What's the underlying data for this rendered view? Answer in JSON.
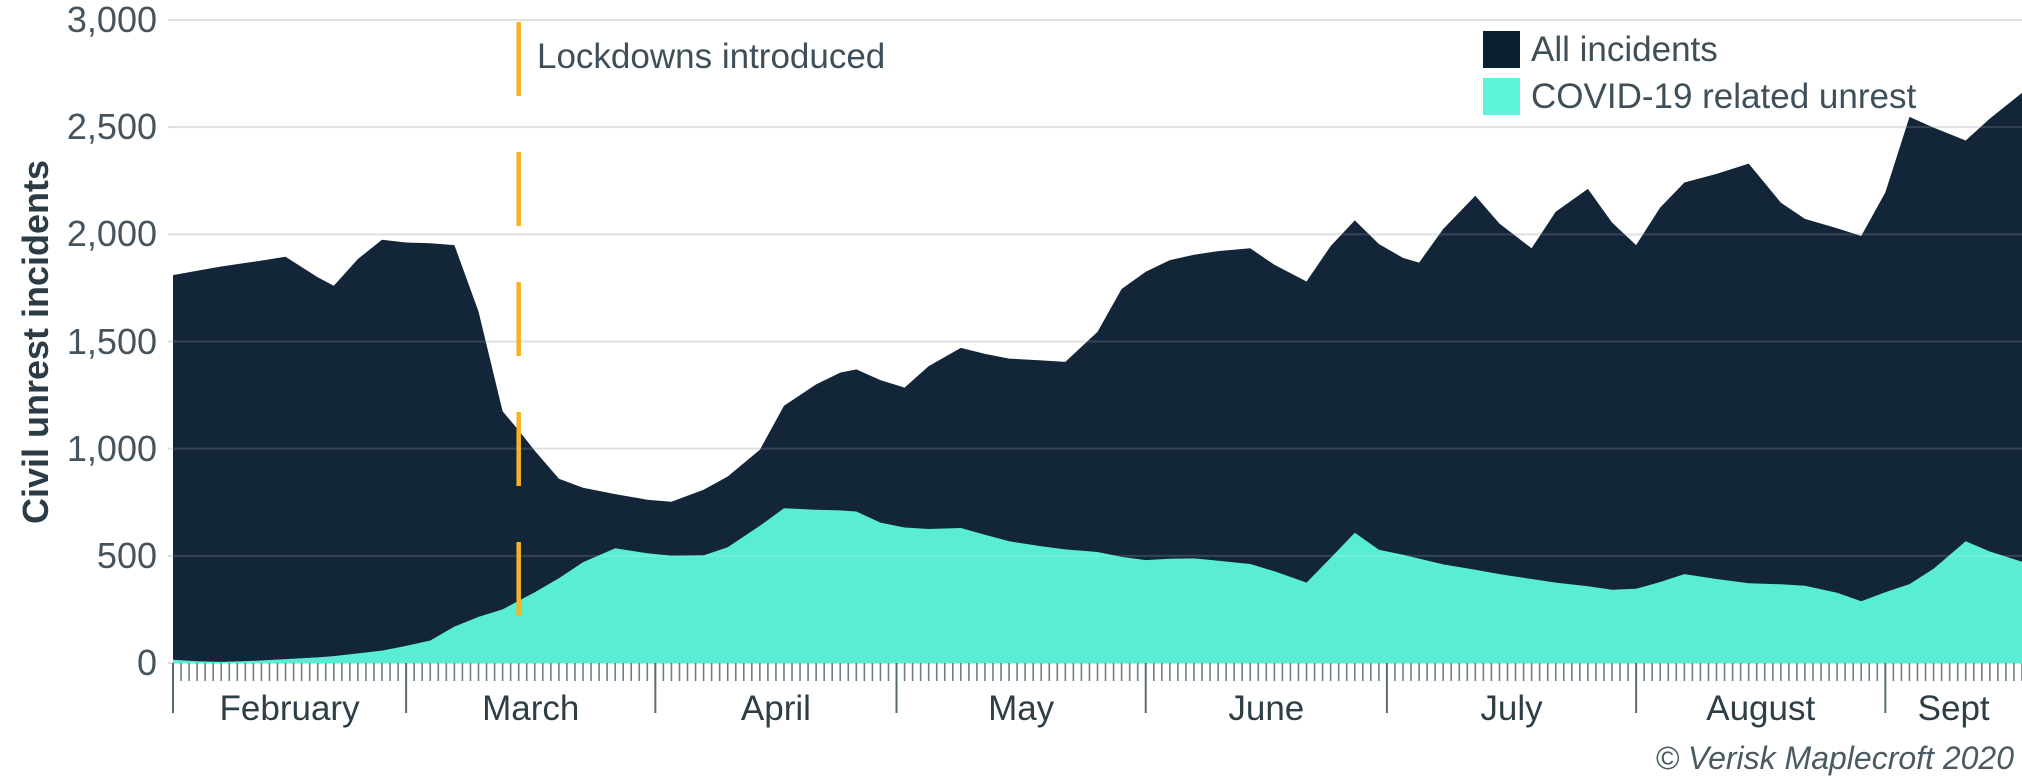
{
  "footer": {
    "credit": "© Verisk Maplecroft 2020"
  },
  "chart_data": {
    "type": "area",
    "title": "",
    "ylabel": "Civil unrest incidents",
    "xlabel": "",
    "x_axis": {
      "months": [
        "February",
        "March",
        "April",
        "May",
        "June",
        "July",
        "August",
        "Sept"
      ],
      "month_start_day_offsets": [
        0,
        29,
        60,
        90,
        121,
        151,
        182,
        213
      ],
      "total_days": 230,
      "start": "2020-02-01",
      "end": "2020-09-18",
      "minor_ticks": "daily"
    },
    "y_axis": {
      "range": [
        0,
        3000
      ],
      "ticks": [
        0,
        500,
        1000,
        1500,
        2000,
        2500,
        3000
      ],
      "tick_labels": [
        "0",
        "500",
        "1,000",
        "1,500",
        "2,000",
        "2,500",
        "3,000"
      ],
      "grid": true
    },
    "legend": [
      {
        "label": "All incidents",
        "color": "#0A1E32"
      },
      {
        "label": "COVID-19 related unrest",
        "color": "#5CF5DA"
      }
    ],
    "annotation": {
      "label": "Lockdowns introduced",
      "date": "Mar 15",
      "style": "vertical-dashed-line",
      "color": "#F7B322"
    },
    "colors": {
      "all_incidents": "#0A1E32",
      "covid_unrest": "#5CF5DA",
      "gridline": "#D9DEE1",
      "tick": "#6E7C83",
      "text": "#3F4F59"
    },
    "points": [
      {
        "d": "Feb 1",
        "all": 1810,
        "covid": 15
      },
      {
        "d": "Feb 4",
        "all": 1830,
        "covid": 8
      },
      {
        "d": "Feb 7",
        "all": 1850,
        "covid": 5
      },
      {
        "d": "Feb 11",
        "all": 1872,
        "covid": 10
      },
      {
        "d": "Feb 15",
        "all": 1895,
        "covid": 18
      },
      {
        "d": "Feb 19",
        "all": 1800,
        "covid": 26
      },
      {
        "d": "Feb 21",
        "all": 1760,
        "covid": 32
      },
      {
        "d": "Feb 24",
        "all": 1885,
        "covid": 45
      },
      {
        "d": "Feb 27",
        "all": 1975,
        "covid": 58
      },
      {
        "d": "Mar 1",
        "all": 1962,
        "covid": 80
      },
      {
        "d": "Mar 4",
        "all": 1958,
        "covid": 105
      },
      {
        "d": "Mar 7",
        "all": 1950,
        "covid": 170
      },
      {
        "d": "Mar 10",
        "all": 1640,
        "covid": 215
      },
      {
        "d": "Mar 13",
        "all": 1175,
        "covid": 250
      },
      {
        "d": "Mar 15",
        "all": 1085,
        "covid": 290
      },
      {
        "d": "Mar 17",
        "all": 990,
        "covid": 330
      },
      {
        "d": "Mar 20",
        "all": 860,
        "covid": 395
      },
      {
        "d": "Mar 23",
        "all": 818,
        "covid": 470
      },
      {
        "d": "Mar 27",
        "all": 788,
        "covid": 535
      },
      {
        "d": "Mar 31",
        "all": 762,
        "covid": 512
      },
      {
        "d": "Apr 3",
        "all": 752,
        "covid": 500
      },
      {
        "d": "Apr 7",
        "all": 808,
        "covid": 502
      },
      {
        "d": "Apr 10",
        "all": 870,
        "covid": 540
      },
      {
        "d": "Apr 14",
        "all": 995,
        "covid": 640
      },
      {
        "d": "Apr 17",
        "all": 1200,
        "covid": 722
      },
      {
        "d": "Apr 21",
        "all": 1300,
        "covid": 715
      },
      {
        "d": "Apr 24",
        "all": 1355,
        "covid": 712
      },
      {
        "d": "Apr 26",
        "all": 1370,
        "covid": 707
      },
      {
        "d": "Apr 29",
        "all": 1320,
        "covid": 655
      },
      {
        "d": "May 2",
        "all": 1285,
        "covid": 632
      },
      {
        "d": "May 5",
        "all": 1385,
        "covid": 625
      },
      {
        "d": "May 9",
        "all": 1470,
        "covid": 630
      },
      {
        "d": "May 12",
        "all": 1442,
        "covid": 598
      },
      {
        "d": "May 15",
        "all": 1420,
        "covid": 568
      },
      {
        "d": "May 19",
        "all": 1412,
        "covid": 545
      },
      {
        "d": "May 22",
        "all": 1405,
        "covid": 530
      },
      {
        "d": "May 26",
        "all": 1545,
        "covid": 518
      },
      {
        "d": "May 29",
        "all": 1745,
        "covid": 495
      },
      {
        "d": "Jun 1",
        "all": 1825,
        "covid": 480
      },
      {
        "d": "Jun 4",
        "all": 1880,
        "covid": 486
      },
      {
        "d": "Jun 7",
        "all": 1905,
        "covid": 488
      },
      {
        "d": "Jun 10",
        "all": 1922,
        "covid": 477
      },
      {
        "d": "Jun 14",
        "all": 1935,
        "covid": 462
      },
      {
        "d": "Jun 17",
        "all": 1858,
        "covid": 428
      },
      {
        "d": "Jun 21",
        "all": 1780,
        "covid": 375
      },
      {
        "d": "Jun 24",
        "all": 1945,
        "covid": 490
      },
      {
        "d": "Jun 27",
        "all": 2065,
        "covid": 608
      },
      {
        "d": "Jun 30",
        "all": 1955,
        "covid": 528
      },
      {
        "d": "Jul 3",
        "all": 1890,
        "covid": 505
      },
      {
        "d": "Jul 5",
        "all": 1868,
        "covid": 487
      },
      {
        "d": "Jul 8",
        "all": 2025,
        "covid": 460
      },
      {
        "d": "Jul 12",
        "all": 2180,
        "covid": 435
      },
      {
        "d": "Jul 15",
        "all": 2050,
        "covid": 415
      },
      {
        "d": "Jul 19",
        "all": 1935,
        "covid": 392
      },
      {
        "d": "Jul 22",
        "all": 2105,
        "covid": 375
      },
      {
        "d": "Jul 26",
        "all": 2212,
        "covid": 358
      },
      {
        "d": "Jul 29",
        "all": 2055,
        "covid": 342
      },
      {
        "d": "Aug 1",
        "all": 1950,
        "covid": 346
      },
      {
        "d": "Aug 4",
        "all": 2125,
        "covid": 378
      },
      {
        "d": "Aug 7",
        "all": 2242,
        "covid": 415
      },
      {
        "d": "Aug 11",
        "all": 2282,
        "covid": 392
      },
      {
        "d": "Aug 15",
        "all": 2330,
        "covid": 372
      },
      {
        "d": "Aug 19",
        "all": 2148,
        "covid": 367
      },
      {
        "d": "Aug 22",
        "all": 2072,
        "covid": 360
      },
      {
        "d": "Aug 26",
        "all": 2028,
        "covid": 328
      },
      {
        "d": "Aug 29",
        "all": 1992,
        "covid": 288
      },
      {
        "d": "Sep 1",
        "all": 2195,
        "covid": 330
      },
      {
        "d": "Sep 4",
        "all": 2548,
        "covid": 368
      },
      {
        "d": "Sep 7",
        "all": 2498,
        "covid": 440
      },
      {
        "d": "Sep 11",
        "all": 2438,
        "covid": 568
      },
      {
        "d": "Sep 14",
        "all": 2540,
        "covid": 520
      },
      {
        "d": "Sep 18",
        "all": 2660,
        "covid": 472
      }
    ]
  }
}
